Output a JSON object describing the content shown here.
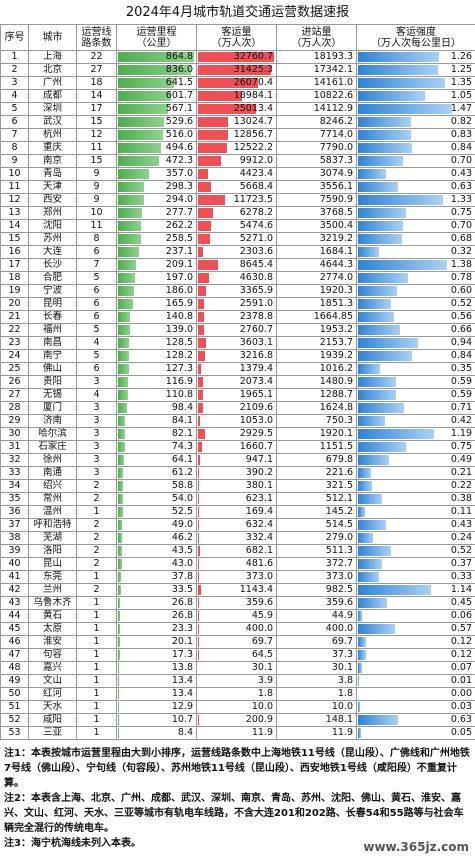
{
  "title": "2024年4月城市轨道交通运营数据速报",
  "table": {
    "headers": [
      [
        "序号"
      ],
      [
        "城市"
      ],
      [
        "运营线",
        "路条数"
      ],
      [
        "运营里程",
        "（公里）"
      ],
      [
        "客运量",
        "（万人次）"
      ],
      [
        "进站量",
        "（万人次）"
      ],
      [
        "客运强度",
        "（万人次每公里日）"
      ]
    ],
    "rows": [
      [
        "1",
        "上海",
        "22",
        "864.8",
        "32760.7",
        "18193.3",
        "1.26"
      ],
      [
        "2",
        "北京",
        "27",
        "836.0",
        "31425.3",
        "17342.1",
        "1.25"
      ],
      [
        "3",
        "广州",
        "18",
        "641.5",
        "26070.4",
        "14161.0",
        "1.35"
      ],
      [
        "4",
        "成都",
        "14",
        "601.7",
        "18984.1",
        "10822.6",
        "1.05"
      ],
      [
        "5",
        "深圳",
        "17",
        "567.1",
        "25013.4",
        "14112.9",
        "1.47"
      ],
      [
        "6",
        "武汉",
        "15",
        "529.6",
        "13024.7",
        "8246.2",
        "0.82"
      ],
      [
        "7",
        "杭州",
        "12",
        "516.0",
        "12856.7",
        "7714.0",
        "0.83"
      ],
      [
        "8",
        "重庆",
        "11",
        "494.6",
        "12522.2",
        "7790.0",
        "0.84"
      ],
      [
        "9",
        "南京",
        "15",
        "472.3",
        "9912.0",
        "5837.3",
        "0.70"
      ],
      [
        "10",
        "青岛",
        "9",
        "357.0",
        "4423.4",
        "3074.9",
        "0.43"
      ],
      [
        "11",
        "天津",
        "9",
        "298.3",
        "5668.4",
        "3556.1",
        "0.63"
      ],
      [
        "12",
        "西安",
        "9",
        "294.0",
        "11723.5",
        "7590.9",
        "1.33"
      ],
      [
        "13",
        "郑州",
        "10",
        "277.7",
        "6278.2",
        "3768.5",
        "0.75"
      ],
      [
        "14",
        "沈阳",
        "11",
        "262.2",
        "5474.6",
        "3500.4",
        "0.70"
      ],
      [
        "15",
        "苏州",
        "8",
        "258.5",
        "5271.0",
        "3219.2",
        "0.68"
      ],
      [
        "16",
        "大连",
        "6",
        "237.1",
        "2303.6",
        "1684.1",
        "0.32"
      ],
      [
        "17",
        "长沙",
        "7",
        "209.1",
        "8645.4",
        "4644.3",
        "1.38"
      ],
      [
        "18",
        "合肥",
        "5",
        "197.0",
        "4630.8",
        "2774.0",
        "0.78"
      ],
      [
        "19",
        "宁波",
        "6",
        "186.0",
        "3365.9",
        "1920.3",
        "0.60"
      ],
      [
        "20",
        "昆明",
        "6",
        "165.9",
        "2591.0",
        "1851.3",
        "0.52"
      ],
      [
        "21",
        "长春",
        "6",
        "140.8",
        "2378.8",
        "1664.85",
        "0.56"
      ],
      [
        "22",
        "福州",
        "5",
        "139.0",
        "2760.7",
        "1953.2",
        "0.66"
      ],
      [
        "23",
        "南昌",
        "4",
        "128.5",
        "3603.1",
        "2153.7",
        "0.94"
      ],
      [
        "24",
        "南宁",
        "5",
        "128.2",
        "3216.8",
        "1939.2",
        "0.84"
      ],
      [
        "25",
        "佛山",
        "6",
        "127.3",
        "1379.4",
        "1016.2",
        "0.35"
      ],
      [
        "26",
        "贵阳",
        "3",
        "116.9",
        "2073.4",
        "1480.9",
        "0.59"
      ],
      [
        "27",
        "无锡",
        "4",
        "110.8",
        "1965.1",
        "1288.7",
        "0.59"
      ],
      [
        "28",
        "厦门",
        "3",
        "98.4",
        "2109.6",
        "1624.8",
        "0.71"
      ],
      [
        "29",
        "济南",
        "3",
        "84.1",
        "1053.0",
        "750.3",
        "0.42"
      ],
      [
        "30",
        "哈尔滨",
        "3",
        "82.1",
        "2929.5",
        "1920.1",
        "1.19"
      ],
      [
        "31",
        "石家庄",
        "3",
        "74.3",
        "1660.7",
        "1151.5",
        "0.75"
      ],
      [
        "32",
        "徐州",
        "3",
        "64.1",
        "947.1",
        "679.8",
        "0.49"
      ],
      [
        "33",
        "南通",
        "3",
        "61.2",
        "390.2",
        "221.6",
        "0.21"
      ],
      [
        "34",
        "绍兴",
        "2",
        "58.8",
        "380.1",
        "321.5",
        "0.22"
      ],
      [
        "35",
        "常州",
        "2",
        "54.0",
        "623.1",
        "512.1",
        "0.38"
      ],
      [
        "36",
        "温州",
        "1",
        "52.5",
        "169.4",
        "145.2",
        "0.11"
      ],
      [
        "37",
        "呼和浩特",
        "2",
        "49.0",
        "632.4",
        "514.5",
        "0.43"
      ],
      [
        "38",
        "芜湖",
        "2",
        "46.2",
        "332.4",
        "279.0",
        "0.24"
      ],
      [
        "39",
        "洛阳",
        "2",
        "43.5",
        "682.1",
        "511.3",
        "0.52"
      ],
      [
        "40",
        "昆山",
        "2",
        "43.0",
        "481.6",
        "372.7",
        "0.37"
      ],
      [
        "41",
        "东莞",
        "1",
        "37.8",
        "373.0",
        "373.0",
        "0.33"
      ],
      [
        "42",
        "兰州",
        "2",
        "33.5",
        "1143.4",
        "982.5",
        "1.14"
      ],
      [
        "43",
        "乌鲁木齐",
        "1",
        "26.8",
        "359.6",
        "359.6",
        "0.45"
      ],
      [
        "44",
        "黄石",
        "1",
        "26.8",
        "45.9",
        "44.9",
        "0.06"
      ],
      [
        "45",
        "太原",
        "1",
        "23.3",
        "400.0",
        "400.0",
        "0.57"
      ],
      [
        "46",
        "淮安",
        "1",
        "20.1",
        "69.7",
        "69.7",
        "0.12"
      ],
      [
        "47",
        "句容",
        "1",
        "17.3",
        "64.5",
        "37.3",
        "0.12"
      ],
      [
        "48",
        "嘉兴",
        "1",
        "13.8",
        "30.1",
        "30.1",
        "0.07"
      ],
      [
        "49",
        "文山",
        "1",
        "13.4",
        "3.9",
        "3.8",
        "0.01"
      ],
      [
        "50",
        "红河",
        "1",
        "13.4",
        "1.8",
        "1.8",
        "0.00"
      ],
      [
        "51",
        "天水",
        "1",
        "12.9",
        "10.0",
        "10.0",
        "0.03"
      ],
      [
        "52",
        "咸阳",
        "1",
        "10.7",
        "200.9",
        "148.1",
        "0.63"
      ],
      [
        "53",
        "三亚",
        "1",
        "8.4",
        "11.9",
        "11.9",
        "0.05"
      ]
    ]
  },
  "notes": [
    "注1：本表按城市运营里程由大到小排序，运营线路条数中上海地铁11号线（昆山段）、广佛线和广州地铁7号线（佛山段）、宁句线（句容段）、苏州地铁11号线（昆山段）、西安地铁1号线（咸阳段）不重复计算。",
    "注2：本表含上海、北京、广州、成都、武汉、深圳、南京、青岛、苏州、沈阳、佛山、黄石、淮安、嘉兴、文山、红河、天水、三亚等城市有轨电车线路，不含大连201和202路、长春54和55路等与社会车辆完全混行的传统电车。",
    "注3：海宁杭海线未列入本表。"
  ],
  "watermark": "www.365jz.com"
}
